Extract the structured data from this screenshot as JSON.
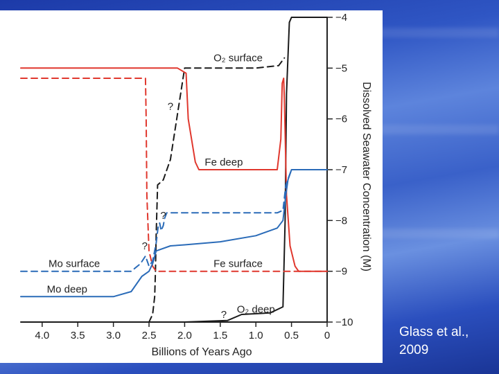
{
  "citation": "Glass et al.,\n2009",
  "chart_data": {
    "type": "line",
    "xlabel": "Billions of Years Ago",
    "ylabel": "Dissolved Seawater Concentration (M)",
    "xlim": [
      4.3,
      0
    ],
    "ylim": [
      -10,
      -4
    ],
    "x_ticks": [
      "4.0",
      "3.5",
      "3.0",
      "2.5",
      "2.0",
      "1.5",
      "1.0",
      "0.5",
      "0"
    ],
    "y_ticks": [
      "-4",
      "-5",
      "-6",
      "-7",
      "-8",
      "-9",
      "-10"
    ],
    "y_axis_side": "right",
    "grid": false,
    "colors": {
      "fe": "#e0372d",
      "mo": "#2a6bb8",
      "o2": "#1a1a1a"
    },
    "series": [
      {
        "name": "O2 surface",
        "color": "#1a1a1a",
        "dash": true,
        "x": [
          2.65,
          2.5,
          2.45,
          2.42,
          2.41,
          2.4,
          2.38,
          2.3,
          2.2,
          2.0,
          1.5,
          1.0,
          0.68,
          0.6
        ],
        "y": [
          -10,
          -10,
          -9.85,
          -9.5,
          -9,
          -8.3,
          -7.3,
          -7.2,
          -6.8,
          -5.0,
          -5.0,
          -5.0,
          -4.95,
          -4.8
        ]
      },
      {
        "name": "O2 deep",
        "color": "#1a1a1a",
        "dash": false,
        "x": [
          4.3,
          3.0,
          2.0,
          1.4,
          1.2,
          0.8,
          0.62,
          0.59,
          0.57,
          0.53,
          0.5,
          0.4,
          0.0
        ],
        "y": [
          -10,
          -10,
          -10,
          -9.97,
          -9.85,
          -9.82,
          -9.7,
          -8.0,
          -5.5,
          -4.1,
          -4.0,
          -4.0,
          -4.0
        ]
      },
      {
        "name": "Fe deep",
        "color": "#e0372d",
        "dash": false,
        "x": [
          4.3,
          3.0,
          2.5,
          2.1,
          1.98,
          1.95,
          1.85,
          1.8,
          1.0,
          0.7,
          0.65,
          0.63,
          0.61,
          0.6,
          0.57,
          0.52,
          0.45,
          0.4,
          0.3,
          0.0
        ],
        "y": [
          -5,
          -5,
          -5,
          -5,
          -5.1,
          -6.0,
          -6.85,
          -7.0,
          -7.0,
          -7.0,
          -6.4,
          -5.3,
          -5.2,
          -5.6,
          -7.5,
          -8.5,
          -8.9,
          -9.0,
          -9.0,
          -9.0
        ]
      },
      {
        "name": "Fe surface",
        "color": "#e0372d",
        "dash": true,
        "x": [
          4.3,
          2.55,
          2.54,
          2.53,
          2.5,
          2.45,
          2.4,
          2.2,
          1.5,
          0.6,
          0.0
        ],
        "y": [
          -5.2,
          -5.2,
          -6.0,
          -7.5,
          -8.6,
          -8.9,
          -9.0,
          -9.0,
          -9.0,
          -9.0,
          -9.0
        ]
      },
      {
        "name": "Mo surface",
        "color": "#2a6bb8",
        "dash": true,
        "x": [
          4.3,
          2.75,
          2.62,
          2.55,
          2.5,
          2.45,
          2.4,
          2.37,
          2.35,
          2.33,
          2.3,
          2.28,
          2.25,
          2.2,
          1.0,
          0.7,
          0.62,
          0.58,
          0.5,
          0.0
        ],
        "y": [
          -9,
          -9,
          -8.85,
          -8.7,
          -8.9,
          -8.8,
          -8.45,
          -8.1,
          -8.05,
          -8.2,
          -8.1,
          -7.95,
          -7.85,
          -7.85,
          -7.85,
          -7.85,
          -7.8,
          -7.3,
          -7.0,
          -7.0
        ]
      },
      {
        "name": "Mo deep",
        "color": "#2a6bb8",
        "dash": false,
        "x": [
          4.3,
          3.0,
          2.75,
          2.6,
          2.5,
          2.45,
          2.4,
          2.2,
          2.0,
          1.5,
          1.0,
          0.7,
          0.62,
          0.58,
          0.55,
          0.5,
          0.0
        ],
        "y": [
          -9.5,
          -9.5,
          -9.4,
          -9.1,
          -9.0,
          -8.85,
          -8.6,
          -8.5,
          -8.48,
          -8.42,
          -8.3,
          -8.15,
          -8.0,
          -7.5,
          -7.2,
          -7.0,
          -7.0
        ]
      }
    ],
    "annotations": [
      {
        "text": "O₂ surface",
        "x": 1.25,
        "y": -4.8
      },
      {
        "text": "Fe deep",
        "x": 1.45,
        "y": -6.85
      },
      {
        "text": "Mo surface",
        "x": 3.55,
        "y": -8.85
      },
      {
        "text": "Fe surface",
        "x": 1.25,
        "y": -8.85
      },
      {
        "text": "Mo deep",
        "x": 3.65,
        "y": -9.35
      },
      {
        "text": "O₂ deep",
        "x": 1.0,
        "y": -9.75
      },
      {
        "text": "?",
        "x": 2.2,
        "y": -5.75
      },
      {
        "text": "?",
        "x": 2.3,
        "y": -7.9
      },
      {
        "text": "?",
        "x": 2.56,
        "y": -8.5
      },
      {
        "text": "?",
        "x": 1.45,
        "y": -9.85
      }
    ]
  }
}
